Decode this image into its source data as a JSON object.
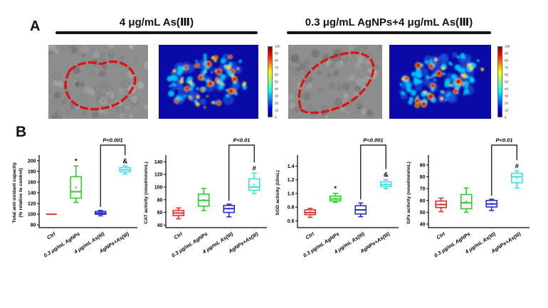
{
  "panel_a": {
    "label": "A",
    "groups": [
      {
        "title": "4 μg/mL As(Ⅲ)"
      },
      {
        "title": "0.3 μg/mL AgNPs+4 μg/mL As(Ⅲ)"
      }
    ],
    "colorbar_ticks": [
      "100",
      "90",
      "80",
      "70",
      "60",
      "50",
      "40",
      "30",
      "20",
      "10",
      "0"
    ]
  },
  "panel_b": {
    "label": "B"
  },
  "colors": {
    "ctrl": "#d93232",
    "agnps": "#2ecc2e",
    "as3": "#2b2bcf",
    "combo": "#3fdede",
    "outline": "#dd1414",
    "heat_bg": "#0a0aa8"
  },
  "chart_data": [
    {
      "type": "box",
      "ylabel": "Total anti-oxidant capacity",
      "ylabel2": "(% relative to control)",
      "xlabel": "",
      "ylim": [
        75,
        205
      ],
      "yticks": [
        "80",
        "100",
        "120",
        "140",
        "160",
        "180",
        "200"
      ],
      "categories": [
        "Ctrl",
        "0.3 μg/mL AgNPs",
        "4 μg/mL As(III)",
        "AgNPs+As(III)"
      ],
      "series": [
        {
          "name": "Ctrl",
          "color": "#d93232",
          "whisker_low": 100,
          "q1": 100,
          "median": 100,
          "q3": 100,
          "whisker_high": 100,
          "annotation": ""
        },
        {
          "name": "0.3 μg/mL AgNPs",
          "color": "#2ecc2e",
          "whisker_low": 122,
          "q1": 130,
          "median": 142,
          "q3": 170,
          "whisker_high": 190,
          "annotation": "*"
        },
        {
          "name": "4 μg/mL As(III)",
          "color": "#2b2bcf",
          "whisker_low": 97,
          "q1": 100,
          "median": 102,
          "q3": 105,
          "whisker_high": 107,
          "annotation": ""
        },
        {
          "name": "AgNPs+As(III)",
          "color": "#3fdede",
          "whisker_low": 175,
          "q1": 179,
          "median": 183,
          "q3": 187,
          "whisker_high": 190,
          "annotation": "&"
        }
      ],
      "significance": {
        "label": "P<0.001",
        "from": 2,
        "to": 3
      }
    },
    {
      "type": "box",
      "ylabel": "CAT activity (nmol/min/mL)",
      "xlabel": "",
      "ylim": [
        36,
        146
      ],
      "yticks": [
        "40",
        "60",
        "80",
        "100",
        "120",
        "140"
      ],
      "categories": [
        "Ctrl",
        "0.3 μg/mL AgNPs",
        "4 μg/mL As(III)",
        "AgNPs+As(III)"
      ],
      "series": [
        {
          "name": "Ctrl",
          "color": "#d93232",
          "whisker_low": 50,
          "q1": 55,
          "median": 59,
          "q3": 63,
          "whisker_high": 67,
          "annotation": ""
        },
        {
          "name": "0.3 μg/mL AgNPs",
          "color": "#2ecc2e",
          "whisker_low": 63,
          "q1": 70,
          "median": 79,
          "q3": 89,
          "whisker_high": 98,
          "annotation": ""
        },
        {
          "name": "4 μg/mL As(III)",
          "color": "#2b2bcf",
          "whisker_low": 53,
          "q1": 60,
          "median": 66,
          "q3": 71,
          "whisker_high": 73,
          "annotation": ""
        },
        {
          "name": "AgNPs+As(III)",
          "color": "#3fdede",
          "whisker_low": 90,
          "q1": 95,
          "median": 100,
          "q3": 113,
          "whisker_high": 122,
          "annotation": "#"
        }
      ],
      "significance": {
        "label": "P<0.01",
        "from": 2,
        "to": 3
      }
    },
    {
      "type": "box",
      "ylabel": "SOD activity (U/mL)",
      "xlabel": "",
      "ylim": [
        0.5,
        1.52
      ],
      "yticks": [
        "0.6",
        "0.8",
        "1.0",
        "1.2",
        "1.4"
      ],
      "categories": [
        "Ctrl",
        "0.3 μg/mL AgNPs",
        "4 μg/mL As(III)",
        "AgNPs+As(III)"
      ],
      "series": [
        {
          "name": "Ctrl",
          "color": "#d93232",
          "whisker_low": 0.65,
          "q1": 0.69,
          "median": 0.72,
          "q3": 0.76,
          "whisker_high": 0.78,
          "annotation": ""
        },
        {
          "name": "0.3 μg/mL AgNPs",
          "color": "#2ecc2e",
          "whisker_low": 0.87,
          "q1": 0.89,
          "median": 0.92,
          "q3": 0.96,
          "whisker_high": 1.0,
          "annotation": "*"
        },
        {
          "name": "4 μg/mL As(III)",
          "color": "#2b2bcf",
          "whisker_low": 0.66,
          "q1": 0.7,
          "median": 0.76,
          "q3": 0.82,
          "whisker_high": 0.86,
          "annotation": ""
        },
        {
          "name": "AgNPs+As(III)",
          "color": "#3fdede",
          "whisker_low": 1.07,
          "q1": 1.1,
          "median": 1.13,
          "q3": 1.17,
          "whisker_high": 1.2,
          "annotation": "&"
        }
      ],
      "significance": {
        "label": "P<0.001",
        "from": 2,
        "to": 3
      }
    },
    {
      "type": "box",
      "ylabel": "GPx activity (nmol/min/mL)",
      "xlabel": "",
      "ylim": [
        37,
        96
      ],
      "yticks": [
        "40",
        "50",
        "60",
        "70",
        "80",
        "90"
      ],
      "categories": [
        "Ctrl",
        "0.3 μg/mL AgNPs",
        "4 μg/mL As(III)",
        "AgNPs+As(III)"
      ],
      "series": [
        {
          "name": "Ctrl",
          "color": "#d93232",
          "whisker_low": 50.5,
          "q1": 54,
          "median": 56.5,
          "q3": 59.5,
          "whisker_high": 62,
          "annotation": ""
        },
        {
          "name": "0.3 μg/mL AgNPs",
          "color": "#2ecc2e",
          "whisker_low": 50,
          "q1": 53,
          "median": 58,
          "q3": 65,
          "whisker_high": 70.5,
          "annotation": ""
        },
        {
          "name": "4 μg/mL As(III)",
          "color": "#2b2bcf",
          "whisker_low": 51.5,
          "q1": 54.5,
          "median": 57,
          "q3": 60,
          "whisker_high": 61,
          "annotation": ""
        },
        {
          "name": "AgNPs+As(III)",
          "color": "#3fdede",
          "whisker_low": 70.5,
          "q1": 75,
          "median": 80,
          "q3": 83,
          "whisker_high": 85,
          "annotation": "#"
        }
      ],
      "significance": {
        "label": "P<0.01",
        "from": 2,
        "to": 3
      }
    }
  ]
}
